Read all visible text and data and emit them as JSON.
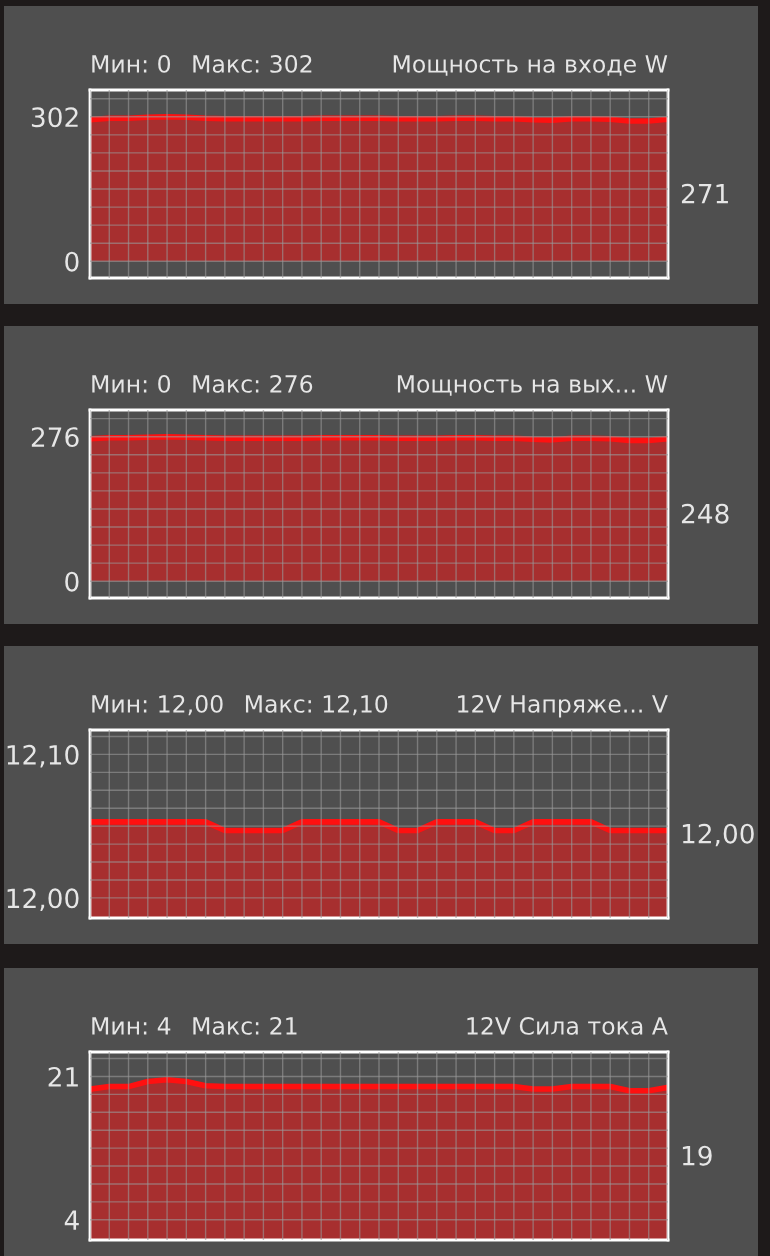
{
  "chart_data": [
    {
      "type": "area",
      "title": "Мощность на входе W",
      "annotations": [
        "Мин: 0",
        "Макс: 302",
        "271"
      ],
      "categories": [
        null,
        null,
        null,
        null,
        null,
        null,
        null,
        null,
        null,
        null,
        null,
        null,
        null,
        null,
        null,
        null,
        null,
        null,
        null,
        null,
        null,
        null,
        null,
        null,
        null,
        null,
        null,
        null,
        null,
        null,
        null
      ],
      "series": [
        {
          "color": "#ff1010",
          "values": [
            296,
            299,
            299,
            301,
            302,
            301,
            299,
            298,
            298,
            298,
            298,
            298,
            299,
            299,
            299,
            299,
            298,
            298,
            298,
            299,
            299,
            298,
            298,
            296,
            295,
            298,
            298,
            297,
            293,
            293,
            297
          ]
        }
      ],
      "ylim": [
        -35,
        358
      ],
      "yticks": [
        0,
        {
          "value": 37.75,
          "label": null
        },
        {
          "value": 75.5,
          "label": null
        },
        {
          "value": 113.25,
          "label": null
        },
        {
          "value": 151,
          "label": null
        },
        {
          "value": 188.75,
          "label": null
        },
        {
          "value": 226.5,
          "label": null
        },
        {
          "value": 264.25,
          "label": null
        },
        302,
        {
          "value": 339.75,
          "label": null
        }
      ],
      "grid": true,
      "tick_labels": "y"
    },
    {
      "type": "area",
      "title": "Мощность на вых... W",
      "annotations": [
        "Мин: 0",
        "Макс: 276",
        "248"
      ],
      "categories": [
        null,
        null,
        null,
        null,
        null,
        null,
        null,
        null,
        null,
        null,
        null,
        null,
        null,
        null,
        null,
        null,
        null,
        null,
        null,
        null,
        null,
        null,
        null,
        null,
        null,
        null,
        null,
        null,
        null,
        null,
        null
      ],
      "series": [
        {
          "color": "#ff1010",
          "values": [
            272,
            274,
            274,
            275,
            276,
            275,
            274,
            273,
            273,
            273,
            273,
            273,
            274,
            274,
            274,
            274,
            273,
            273,
            273,
            274,
            274,
            273,
            273,
            271,
            270,
            273,
            273,
            272,
            269,
            269,
            272
          ]
        }
      ],
      "ylim": [
        -32,
        327
      ],
      "yticks": [
        0,
        {
          "value": 34.5,
          "label": null
        },
        {
          "value": 69,
          "label": null
        },
        {
          "value": 103.5,
          "label": null
        },
        {
          "value": 138,
          "label": null
        },
        {
          "value": 172.5,
          "label": null
        },
        {
          "value": 207,
          "label": null
        },
        {
          "value": 241.5,
          "label": null
        },
        276,
        {
          "value": 310.5,
          "label": null
        }
      ],
      "grid": true,
      "tick_labels": "y"
    },
    {
      "type": "area",
      "title": "12V Напряже... V",
      "annotations": [
        "Мин: 12,00",
        "Макс: 12,10",
        "12,00"
      ],
      "categories": [
        null,
        null,
        null,
        null,
        null,
        null,
        null,
        null,
        null,
        null,
        null,
        null,
        null,
        null,
        null,
        null,
        null,
        null,
        null,
        null,
        null,
        null,
        null,
        null,
        null,
        null,
        null,
        null,
        null,
        null,
        null
      ],
      "series": [
        {
          "color": "#ff1010",
          "values": [
            12.053,
            12.053,
            12.053,
            12.053,
            12.053,
            12.053,
            12.053,
            12.047,
            12.047,
            12.047,
            12.047,
            12.053,
            12.053,
            12.053,
            12.053,
            12.053,
            12.047,
            12.047,
            12.053,
            12.053,
            12.053,
            12.047,
            12.047,
            12.053,
            12.053,
            12.053,
            12.053,
            12.047,
            12.047,
            12.047,
            12.047
          ]
        }
      ],
      "ylim": [
        11.986,
        12.117
      ],
      "yticks": [
        {
          "value": 12.0,
          "label": "12,00"
        },
        {
          "value": 12.0125,
          "label": null
        },
        {
          "value": 12.025,
          "label": null
        },
        {
          "value": 12.0375,
          "label": null
        },
        {
          "value": 12.05,
          "label": null
        },
        {
          "value": 12.0625,
          "label": null
        },
        {
          "value": 12.075,
          "label": null
        },
        {
          "value": 12.0875,
          "label": null
        },
        {
          "value": 12.1,
          "label": "12,10"
        },
        {
          "value": 12.1125,
          "label": null
        }
      ],
      "grid": true,
      "tick_labels": "y"
    },
    {
      "type": "area",
      "title": "12V Сила тока A",
      "annotations": [
        "Мин: 4",
        "Макс: 21",
        "19"
      ],
      "categories": [
        null,
        null,
        null,
        null,
        null,
        null,
        null,
        null,
        null,
        null,
        null,
        null,
        null,
        null,
        null,
        null,
        null,
        null,
        null,
        null,
        null,
        null,
        null,
        null,
        null,
        null,
        null,
        null,
        null,
        null,
        null
      ],
      "series": [
        {
          "color": "#ff1010",
          "values": [
            19.5,
            19.8,
            19.8,
            20.4,
            20.6,
            20.4,
            19.9,
            19.8,
            19.8,
            19.8,
            19.8,
            19.8,
            19.8,
            19.8,
            19.8,
            19.8,
            19.8,
            19.8,
            19.8,
            19.8,
            19.8,
            19.8,
            19.8,
            19.5,
            19.5,
            19.8,
            19.8,
            19.8,
            19.3,
            19.3,
            19.7
          ]
        }
      ],
      "ylim": [
        1.6,
        23.9
      ],
      "yticks": [
        4,
        {
          "value": 6.125,
          "label": null
        },
        {
          "value": 8.25,
          "label": null
        },
        {
          "value": 10.375,
          "label": null
        },
        {
          "value": 12.5,
          "label": null
        },
        {
          "value": 14.625,
          "label": null
        },
        {
          "value": 16.75,
          "label": null
        },
        {
          "value": 18.875,
          "label": null
        },
        21,
        {
          "value": 23.125,
          "label": null
        }
      ],
      "grid": true,
      "tick_labels": "y"
    }
  ]
}
